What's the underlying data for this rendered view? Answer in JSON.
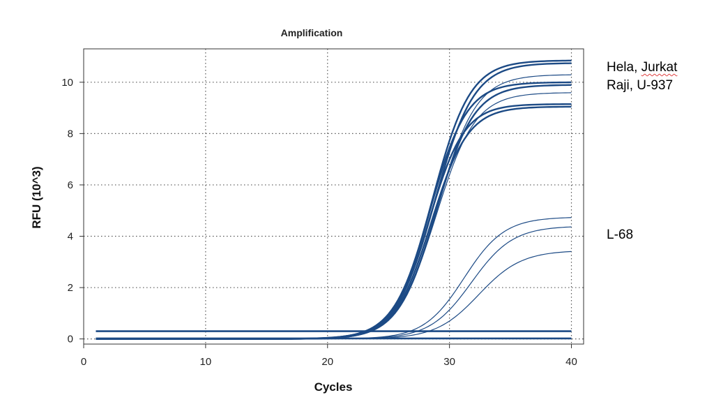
{
  "chart_data": {
    "type": "line",
    "title": "Amplification",
    "xlabel": "Cycles",
    "ylabel": "RFU (10^3)",
    "xlim": [
      0,
      41
    ],
    "ylim": [
      -0.2,
      11.3
    ],
    "xticks": [
      0,
      10,
      20,
      30,
      40
    ],
    "yticks": [
      0,
      2,
      4,
      6,
      8,
      10
    ],
    "grid": true,
    "line_color": "#1c4a85",
    "annotations": {
      "high_group_line1_a": "Hela, ",
      "high_group_line1_b": "Jurkat",
      "high_group_line2": "Raji, U-937",
      "low_group": "L-68"
    },
    "baselines": [
      {
        "y": 0.3,
        "x_start": 1,
        "x_end": 40
      },
      {
        "y": 0.02,
        "x_start": 1,
        "x_end": 40
      }
    ],
    "curves": [
      {
        "plateau": 10.85,
        "midpoint": 28.6,
        "slope": 1.55,
        "weight": "bold"
      },
      {
        "plateau": 10.75,
        "midpoint": 28.8,
        "slope": 1.6,
        "weight": "bold"
      },
      {
        "plateau": 10.3,
        "midpoint": 29.0,
        "slope": 1.6,
        "weight": "thin"
      },
      {
        "plateau": 10.0,
        "midpoint": 28.4,
        "slope": 1.5,
        "weight": "bold"
      },
      {
        "plateau": 9.9,
        "midpoint": 28.9,
        "slope": 1.55,
        "weight": "bold"
      },
      {
        "plateau": 9.6,
        "midpoint": 28.9,
        "slope": 1.6,
        "weight": "thin"
      },
      {
        "plateau": 9.15,
        "midpoint": 28.3,
        "slope": 1.45,
        "weight": "bold"
      },
      {
        "plateau": 9.05,
        "midpoint": 28.5,
        "slope": 1.5,
        "weight": "bold"
      },
      {
        "plateau": 4.75,
        "midpoint": 31.2,
        "slope": 1.65,
        "weight": "thin"
      },
      {
        "plateau": 4.4,
        "midpoint": 31.8,
        "slope": 1.7,
        "weight": "thin"
      },
      {
        "plateau": 3.45,
        "midpoint": 32.4,
        "slope": 1.75,
        "weight": "thin"
      }
    ]
  }
}
